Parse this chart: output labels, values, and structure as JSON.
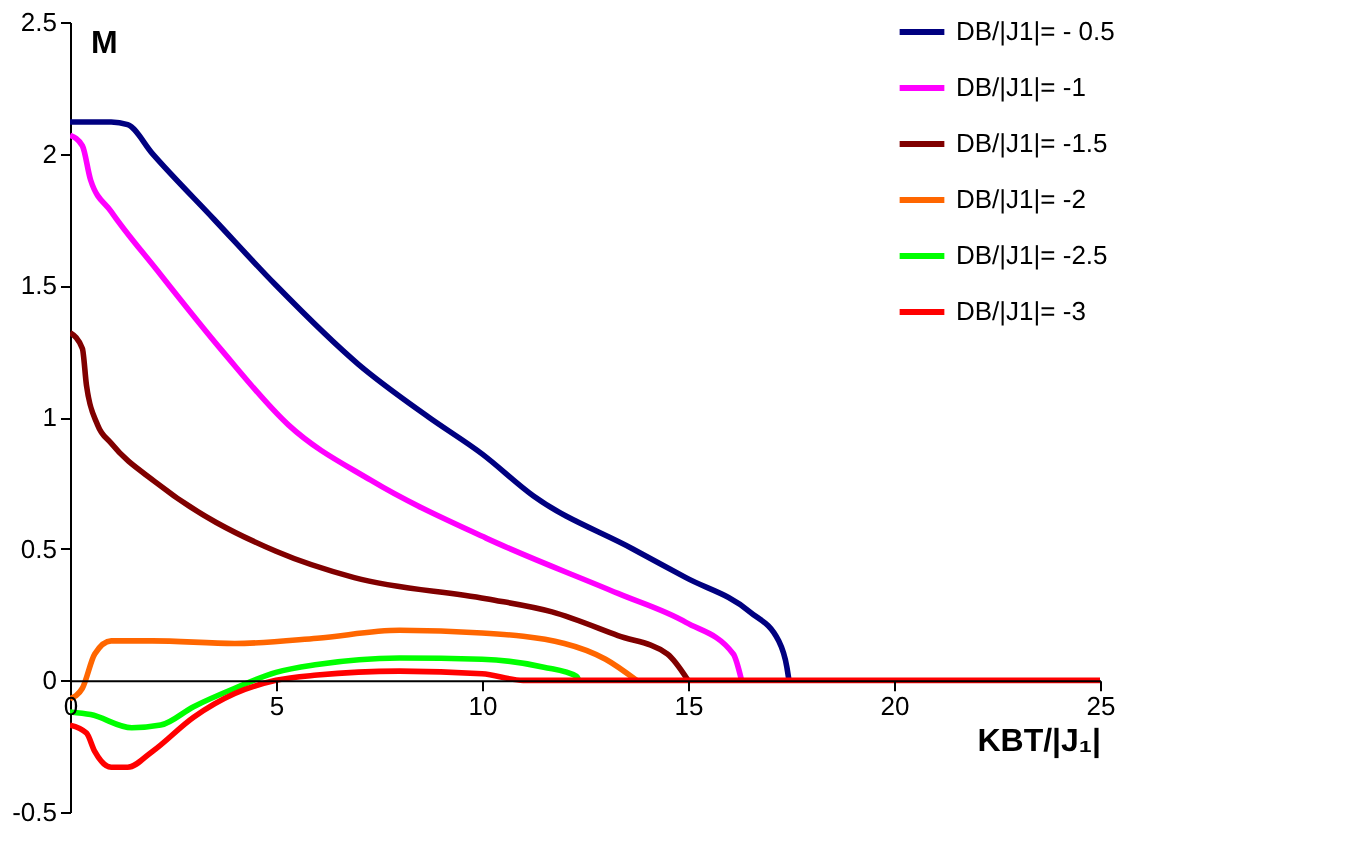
{
  "chart_data": {
    "type": "line",
    "xlabel": "KBT/|J₁|",
    "ylabel": "M",
    "xlim": [
      0,
      25
    ],
    "ylim": [
      -0.5,
      2.5
    ],
    "xticks": [
      0,
      5,
      10,
      15,
      20,
      25
    ],
    "yticks": [
      -0.5,
      0,
      0.5,
      1,
      1.5,
      2,
      2.5
    ],
    "grid": false,
    "legend": "top right",
    "marker": "none",
    "line_style": "solid",
    "series": [
      {
        "name": "DB/|J1|= - 0.5",
        "color": "#000080",
        "x": [
          0,
          1,
          1.4,
          2,
          3.5,
          5,
          7,
          8.7,
          10,
          11.25,
          13.65,
          14.95,
          16.5,
          17.2,
          17.4,
          17.45
        ],
        "values": [
          2.12,
          2.12,
          2.11,
          2.0,
          1.75,
          1.5,
          1.2,
          1.0,
          0.86,
          0.7,
          0.5,
          0.39,
          0.26,
          0.15,
          0.05,
          0
        ]
      },
      {
        "name": "DB/|J1|= -1",
        "color": "#ff00ff",
        "x": [
          0,
          0.3,
          0.5,
          1,
          2.1,
          3.7,
          5.3,
          7.3,
          10.1,
          13.3,
          14.95,
          16.1,
          16.3
        ],
        "values": [
          2.07,
          2.03,
          1.9,
          1.78,
          1.56,
          1.25,
          0.97,
          0.76,
          0.54,
          0.33,
          0.22,
          0.1,
          0
        ]
      },
      {
        "name": "DB/|J1|= -1.5",
        "color": "#800000",
        "x": [
          0,
          0.3,
          0.4,
          0.67,
          1,
          2.1,
          5,
          6.9,
          10.1,
          11.7,
          13.3,
          14.5,
          15.0
        ],
        "values": [
          1.32,
          1.26,
          1.12,
          0.97,
          0.9,
          0.75,
          0.49,
          0.39,
          0.31,
          0.26,
          0.17,
          0.1,
          0
        ]
      },
      {
        "name": "DB/|J1|= -2",
        "color": "#ff6600",
        "x": [
          0,
          0.3,
          0.6,
          1,
          2,
          4,
          6,
          8,
          10,
          12,
          13,
          13.75
        ],
        "values": [
          -0.07,
          -0.03,
          0.1,
          0.15,
          0.15,
          0.14,
          0.16,
          0.19,
          0.18,
          0.14,
          0.08,
          0
        ]
      },
      {
        "name": "DB/|J1|= -2.5",
        "color": "#00ff00",
        "x": [
          0,
          0.5,
          1.5,
          2.2,
          3,
          4,
          5,
          6,
          8,
          10,
          11.5,
          12.3,
          12.35
        ],
        "values": [
          -0.12,
          -0.13,
          -0.18,
          -0.17,
          -0.1,
          -0.03,
          0.03,
          0.06,
          0.085,
          0.08,
          0.05,
          0.015,
          0
        ]
      },
      {
        "name": "DB/|J1|= -3",
        "color": "#ff0000",
        "x": [
          0,
          0.4,
          0.6,
          1.0,
          1.4,
          2,
          3,
          4,
          5,
          6,
          8,
          10,
          11,
          25
        ],
        "values": [
          -0.17,
          -0.2,
          -0.27,
          -0.33,
          -0.33,
          -0.27,
          -0.14,
          -0.05,
          0.0,
          0.02,
          0.035,
          0.025,
          0,
          0
        ]
      }
    ]
  }
}
